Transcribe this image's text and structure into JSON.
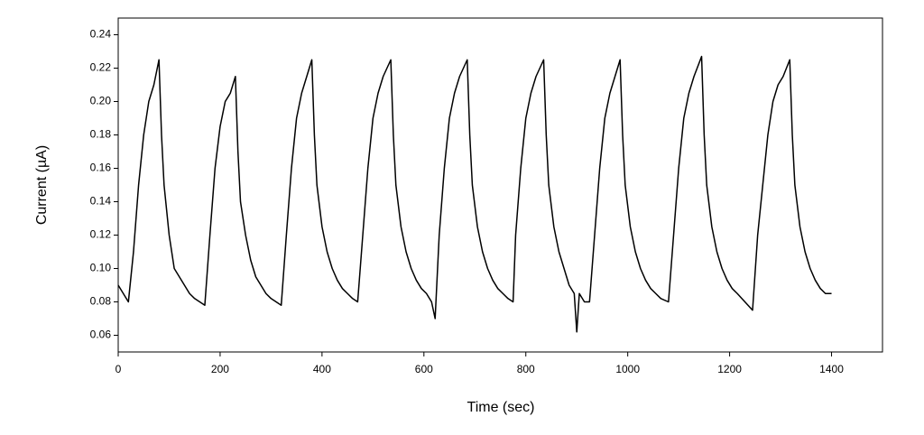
{
  "chart_data": {
    "type": "line",
    "xlabel": "Time (sec)",
    "ylabel": "Current (µA)",
    "color": "#000000",
    "xlim": [
      0,
      1500
    ],
    "ylim": [
      0.05,
      0.25
    ],
    "xticks": [
      0,
      200,
      400,
      600,
      800,
      1000,
      1200,
      1400
    ],
    "yticks": [
      0.06,
      0.08,
      {
        "value": 0.1,
        "label": "0.10"
      },
      0.12,
      0.14,
      0.16,
      0.18,
      {
        "value": 0.2,
        "label": "0.20"
      },
      0.22,
      0.24
    ],
    "x": [
      0,
      10,
      20,
      30,
      40,
      50,
      60,
      70,
      80,
      85,
      90,
      100,
      110,
      120,
      130,
      140,
      150,
      160,
      170,
      180,
      190,
      200,
      210,
      220,
      230,
      235,
      240,
      250,
      260,
      270,
      280,
      290,
      300,
      310,
      320,
      330,
      340,
      350,
      360,
      370,
      380,
      385,
      390,
      400,
      410,
      420,
      430,
      440,
      450,
      460,
      470,
      480,
      490,
      500,
      510,
      520,
      535,
      540,
      545,
      555,
      565,
      575,
      585,
      595,
      605,
      615,
      622,
      630,
      640,
      650,
      660,
      670,
      685,
      690,
      695,
      705,
      715,
      725,
      735,
      745,
      755,
      765,
      775,
      780,
      790,
      800,
      810,
      820,
      835,
      840,
      845,
      855,
      865,
      875,
      885,
      895,
      900,
      905,
      915,
      925,
      935,
      945,
      955,
      965,
      975,
      985,
      990,
      995,
      1005,
      1015,
      1025,
      1035,
      1045,
      1055,
      1065,
      1080,
      1090,
      1100,
      1110,
      1120,
      1130,
      1145,
      1150,
      1155,
      1165,
      1175,
      1185,
      1195,
      1205,
      1215,
      1230,
      1245,
      1255,
      1265,
      1275,
      1285,
      1295,
      1305,
      1318,
      1323,
      1328,
      1338,
      1348,
      1358,
      1368,
      1378,
      1388,
      1400
    ],
    "values": [
      0.09,
      0.085,
      0.08,
      0.11,
      0.15,
      0.18,
      0.2,
      0.21,
      0.225,
      0.18,
      0.15,
      0.12,
      0.1,
      0.095,
      0.09,
      0.085,
      0.082,
      0.08,
      0.078,
      0.12,
      0.16,
      0.185,
      0.2,
      0.205,
      0.215,
      0.17,
      0.14,
      0.12,
      0.105,
      0.095,
      0.09,
      0.085,
      0.082,
      0.08,
      0.078,
      0.12,
      0.16,
      0.19,
      0.205,
      0.215,
      0.225,
      0.18,
      0.15,
      0.125,
      0.11,
      0.1,
      0.093,
      0.088,
      0.085,
      0.082,
      0.08,
      0.12,
      0.16,
      0.19,
      0.205,
      0.215,
      0.225,
      0.18,
      0.15,
      0.125,
      0.11,
      0.1,
      0.093,
      0.088,
      0.085,
      0.08,
      0.07,
      0.12,
      0.16,
      0.19,
      0.205,
      0.215,
      0.225,
      0.18,
      0.15,
      0.125,
      0.11,
      0.1,
      0.093,
      0.088,
      0.085,
      0.082,
      0.08,
      0.12,
      0.16,
      0.19,
      0.205,
      0.215,
      0.225,
      0.18,
      0.15,
      0.125,
      0.11,
      0.1,
      0.09,
      0.085,
      0.062,
      0.085,
      0.08,
      0.08,
      0.12,
      0.16,
      0.19,
      0.205,
      0.215,
      0.225,
      0.18,
      0.15,
      0.125,
      0.11,
      0.1,
      0.093,
      0.088,
      0.085,
      0.082,
      0.08,
      0.12,
      0.16,
      0.19,
      0.205,
      0.215,
      0.227,
      0.18,
      0.15,
      0.125,
      0.11,
      0.1,
      0.093,
      0.088,
      0.085,
      0.08,
      0.075,
      0.12,
      0.15,
      0.18,
      0.2,
      0.21,
      0.215,
      0.225,
      0.18,
      0.15,
      0.125,
      0.11,
      0.1,
      0.093,
      0.088,
      0.085,
      0.085
    ]
  }
}
